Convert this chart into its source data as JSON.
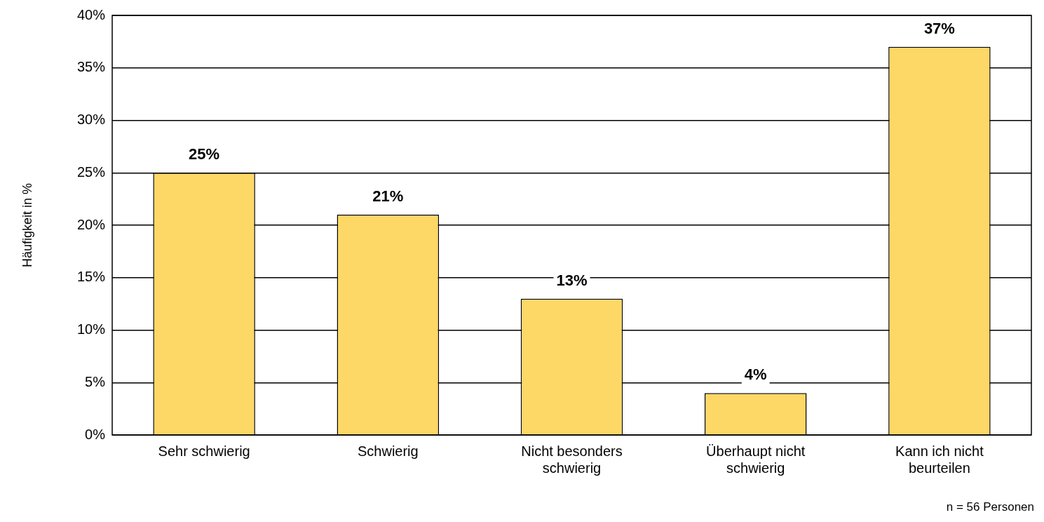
{
  "chart_data": {
    "type": "bar",
    "ylabel": "Häufigkeit in %",
    "categories": [
      "Sehr schwierig",
      "Schwierig",
      "Nicht besonders schwierig",
      "Überhaupt nicht schwierig",
      "Kann ich nicht beurteilen"
    ],
    "values": [
      25,
      21,
      13,
      4,
      37
    ],
    "color": "#fdd866",
    "data_labels": true,
    "value_labels": [
      "25%",
      "21%",
      "13%",
      "4%",
      "37%"
    ],
    "ylim": [
      0,
      40
    ],
    "yticks": [
      {
        "value": 0,
        "label": "0%"
      },
      {
        "value": 5,
        "label": "5%"
      },
      {
        "value": 10,
        "label": "10%"
      },
      {
        "value": 15,
        "label": "15%"
      },
      {
        "value": 20,
        "label": "20%"
      },
      {
        "value": 25,
        "label": "25%"
      },
      {
        "value": 30,
        "label": "30%"
      },
      {
        "value": 35,
        "label": "35%"
      },
      {
        "value": 40,
        "label": "40%"
      }
    ],
    "grid": "y",
    "legend": false,
    "annotations": [
      "n = 56 Personen"
    ]
  }
}
